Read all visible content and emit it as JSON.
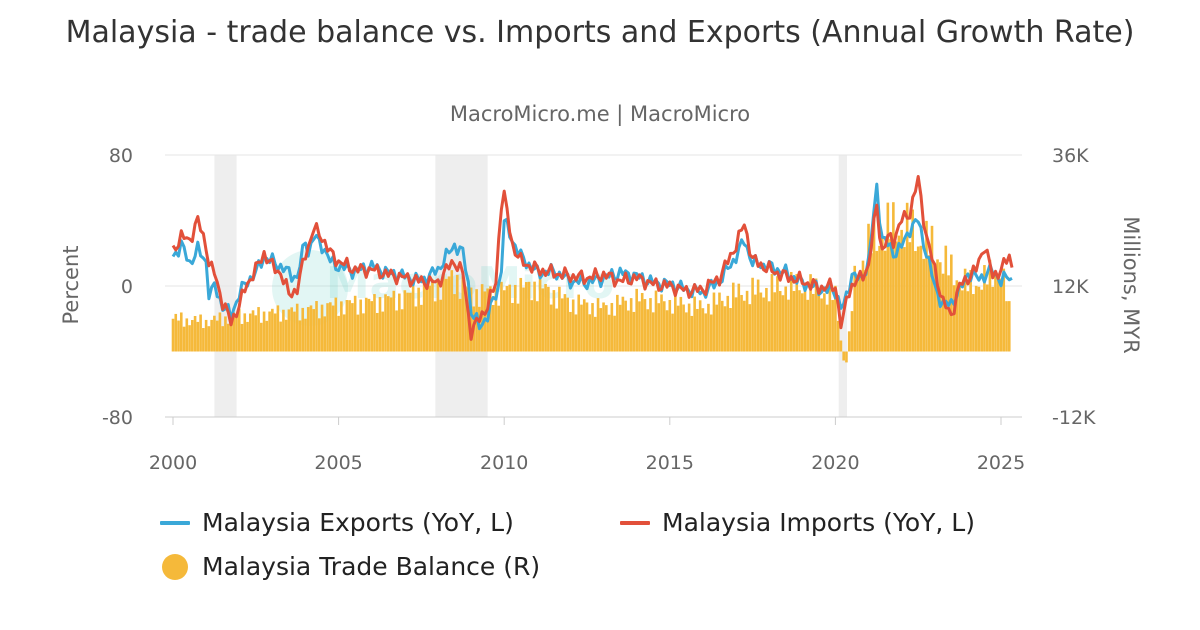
{
  "chart": {
    "title": "Malaysia - trade balance vs. Imports and Exports (Annual Growth Rate)",
    "subtitle": "MacroMicro.me | MacroMicro",
    "watermark": "MacroMicro"
  },
  "colors": {
    "exports": "#3aa8d8",
    "imports": "#e2503a",
    "balance": "#f5b93a",
    "recession": "#eeeeee",
    "grid": "#e6e6e6"
  },
  "legend": {
    "exports": "Malaysia Exports (YoY, L)",
    "imports": "Malaysia Imports (YoY, L)",
    "balance": "Malaysia Trade Balance (R)"
  },
  "chart_data": {
    "type": "line",
    "x_axis": {
      "min": 2000,
      "max": 2025.5,
      "ticks": [
        2000,
        2005,
        2010,
        2015,
        2020,
        2025
      ],
      "tick_labels": [
        "2000",
        "2005",
        "2010",
        "2015",
        "2020",
        "2025"
      ]
    },
    "y_axis_left": {
      "label": "Percent",
      "min": -80,
      "max": 80,
      "ticks": [
        80,
        0,
        -80
      ],
      "tick_labels": [
        "80",
        "0",
        "-80"
      ]
    },
    "y_axis_right": {
      "label": "Millions, MYR",
      "min": -12000,
      "max": 36000,
      "ticks": [
        36000,
        12000,
        -12000
      ],
      "tick_labels": [
        "36K",
        "12K",
        "-12K"
      ]
    },
    "grid": true,
    "legend_position": "bottom",
    "recession_periods": [
      [
        2001.25,
        2001.92
      ],
      [
        2007.92,
        2009.5
      ],
      [
        2020.1,
        2020.35
      ]
    ],
    "series": [
      {
        "name": "Malaysia Exports (YoY, L)",
        "axis": "left",
        "style": "line",
        "x": [
          2000.0,
          2000.25,
          2000.5,
          2000.75,
          2001.0,
          2001.1,
          2001.25,
          2001.5,
          2001.75,
          2002.0,
          2002.2,
          2002.5,
          2002.75,
          2003.0,
          2003.25,
          2003.5,
          2003.75,
          2004.0,
          2004.1,
          2004.25,
          2004.5,
          2004.75,
          2005.0,
          2005.5,
          2006.0,
          2006.5,
          2007.0,
          2007.5,
          2008.0,
          2008.25,
          2008.5,
          2008.75,
          2008.9,
          2009.0,
          2009.25,
          2009.5,
          2009.75,
          2009.9,
          2010.0,
          2010.25,
          2010.5,
          2011.0,
          2011.5,
          2012.0,
          2012.5,
          2013.0,
          2013.5,
          2014.0,
          2014.5,
          2015.0,
          2015.5,
          2016.0,
          2016.5,
          2017.0,
          2017.25,
          2017.5,
          2018.0,
          2018.5,
          2019.0,
          2019.5,
          2020.0,
          2020.2,
          2020.35,
          2020.5,
          2020.75,
          2021.0,
          2021.25,
          2021.4,
          2021.6,
          2021.75,
          2022.0,
          2022.25,
          2022.5,
          2022.75,
          2023.0,
          2023.25,
          2023.5,
          2023.75,
          2024.0,
          2024.25,
          2024.5,
          2024.75,
          2025.0,
          2025.25,
          2025.4
        ],
        "values": [
          18,
          25,
          14,
          22,
          15,
          -8,
          0,
          -12,
          -18,
          -5,
          2,
          8,
          18,
          15,
          12,
          8,
          5,
          28,
          20,
          30,
          25,
          15,
          12,
          9,
          12,
          8,
          6,
          3,
          10,
          18,
          25,
          20,
          5,
          -15,
          -25,
          -18,
          -5,
          5,
          40,
          28,
          18,
          8,
          9,
          3,
          2,
          5,
          8,
          6,
          2,
          1,
          -2,
          -4,
          3,
          18,
          28,
          14,
          12,
          8,
          2,
          -2,
          -3,
          -15,
          -6,
          8,
          3,
          15,
          60,
          30,
          25,
          20,
          24,
          35,
          40,
          20,
          0,
          -12,
          -10,
          -3,
          8,
          5,
          6,
          10,
          3,
          6,
          2
        ]
      },
      {
        "name": "Malaysia Imports (YoY, L)",
        "axis": "left",
        "style": "line",
        "x": [
          2000.0,
          2000.25,
          2000.5,
          2000.75,
          2001.0,
          2001.1,
          2001.25,
          2001.5,
          2001.75,
          2002.0,
          2002.2,
          2002.5,
          2002.75,
          2003.0,
          2003.25,
          2003.5,
          2003.75,
          2004.0,
          2004.1,
          2004.25,
          2004.5,
          2004.75,
          2005.0,
          2005.5,
          2006.0,
          2006.5,
          2007.0,
          2007.5,
          2008.0,
          2008.25,
          2008.5,
          2008.75,
          2008.9,
          2009.0,
          2009.25,
          2009.5,
          2009.75,
          2009.9,
          2010.0,
          2010.25,
          2010.5,
          2011.0,
          2011.5,
          2012.0,
          2012.5,
          2013.0,
          2013.5,
          2014.0,
          2014.5,
          2015.0,
          2015.5,
          2016.0,
          2016.5,
          2017.0,
          2017.25,
          2017.5,
          2018.0,
          2018.5,
          2019.0,
          2019.5,
          2020.0,
          2020.2,
          2020.35,
          2020.5,
          2020.75,
          2021.0,
          2021.25,
          2021.4,
          2021.6,
          2021.75,
          2022.0,
          2022.25,
          2022.5,
          2022.75,
          2023.0,
          2023.25,
          2023.5,
          2023.75,
          2024.0,
          2024.25,
          2024.5,
          2024.75,
          2025.0,
          2025.25,
          2025.4
        ],
        "values": [
          22,
          30,
          28,
          40,
          25,
          12,
          8,
          -10,
          -22,
          -12,
          0,
          10,
          20,
          12,
          8,
          -5,
          -2,
          20,
          25,
          35,
          30,
          20,
          15,
          10,
          10,
          7,
          5,
          3,
          2,
          10,
          15,
          8,
          -15,
          -28,
          -20,
          -12,
          2,
          50,
          55,
          25,
          15,
          10,
          8,
          6,
          5,
          7,
          3,
          5,
          1,
          0,
          -3,
          -2,
          5,
          25,
          38,
          16,
          10,
          6,
          3,
          -1,
          0,
          -28,
          -5,
          0,
          5,
          12,
          50,
          20,
          30,
          28,
          40,
          45,
          65,
          30,
          10,
          -10,
          -18,
          0,
          5,
          10,
          25,
          6,
          10,
          18,
          8
        ]
      },
      {
        "name": "Malaysia Trade Balance (R)",
        "axis": "right",
        "style": "bar",
        "x": [
          2000.0,
          2001.0,
          2002.0,
          2003.0,
          2004.0,
          2005.0,
          2006.0,
          2007.0,
          2008.0,
          2008.5,
          2009.0,
          2010.0,
          2011.0,
          2012.0,
          2013.0,
          2014.0,
          2015.0,
          2016.0,
          2017.0,
          2018.0,
          2019.0,
          2020.0,
          2020.3,
          2020.6,
          2021.0,
          2021.5,
          2022.0,
          2022.5,
          2023.0,
          2023.5,
          2024.0,
          2024.5,
          2025.0,
          2025.3
        ],
        "values": [
          6000,
          5500,
          6500,
          7000,
          7500,
          8500,
          9000,
          10000,
          12000,
          13500,
          10500,
          11000,
          12000,
          9000,
          8000,
          9500,
          9000,
          8000,
          10500,
          11500,
          12000,
          10000,
          -4000,
          14000,
          19000,
          22000,
          23000,
          20500,
          18500,
          14500,
          12000,
          13000,
          15000,
          6000
        ]
      }
    ]
  }
}
